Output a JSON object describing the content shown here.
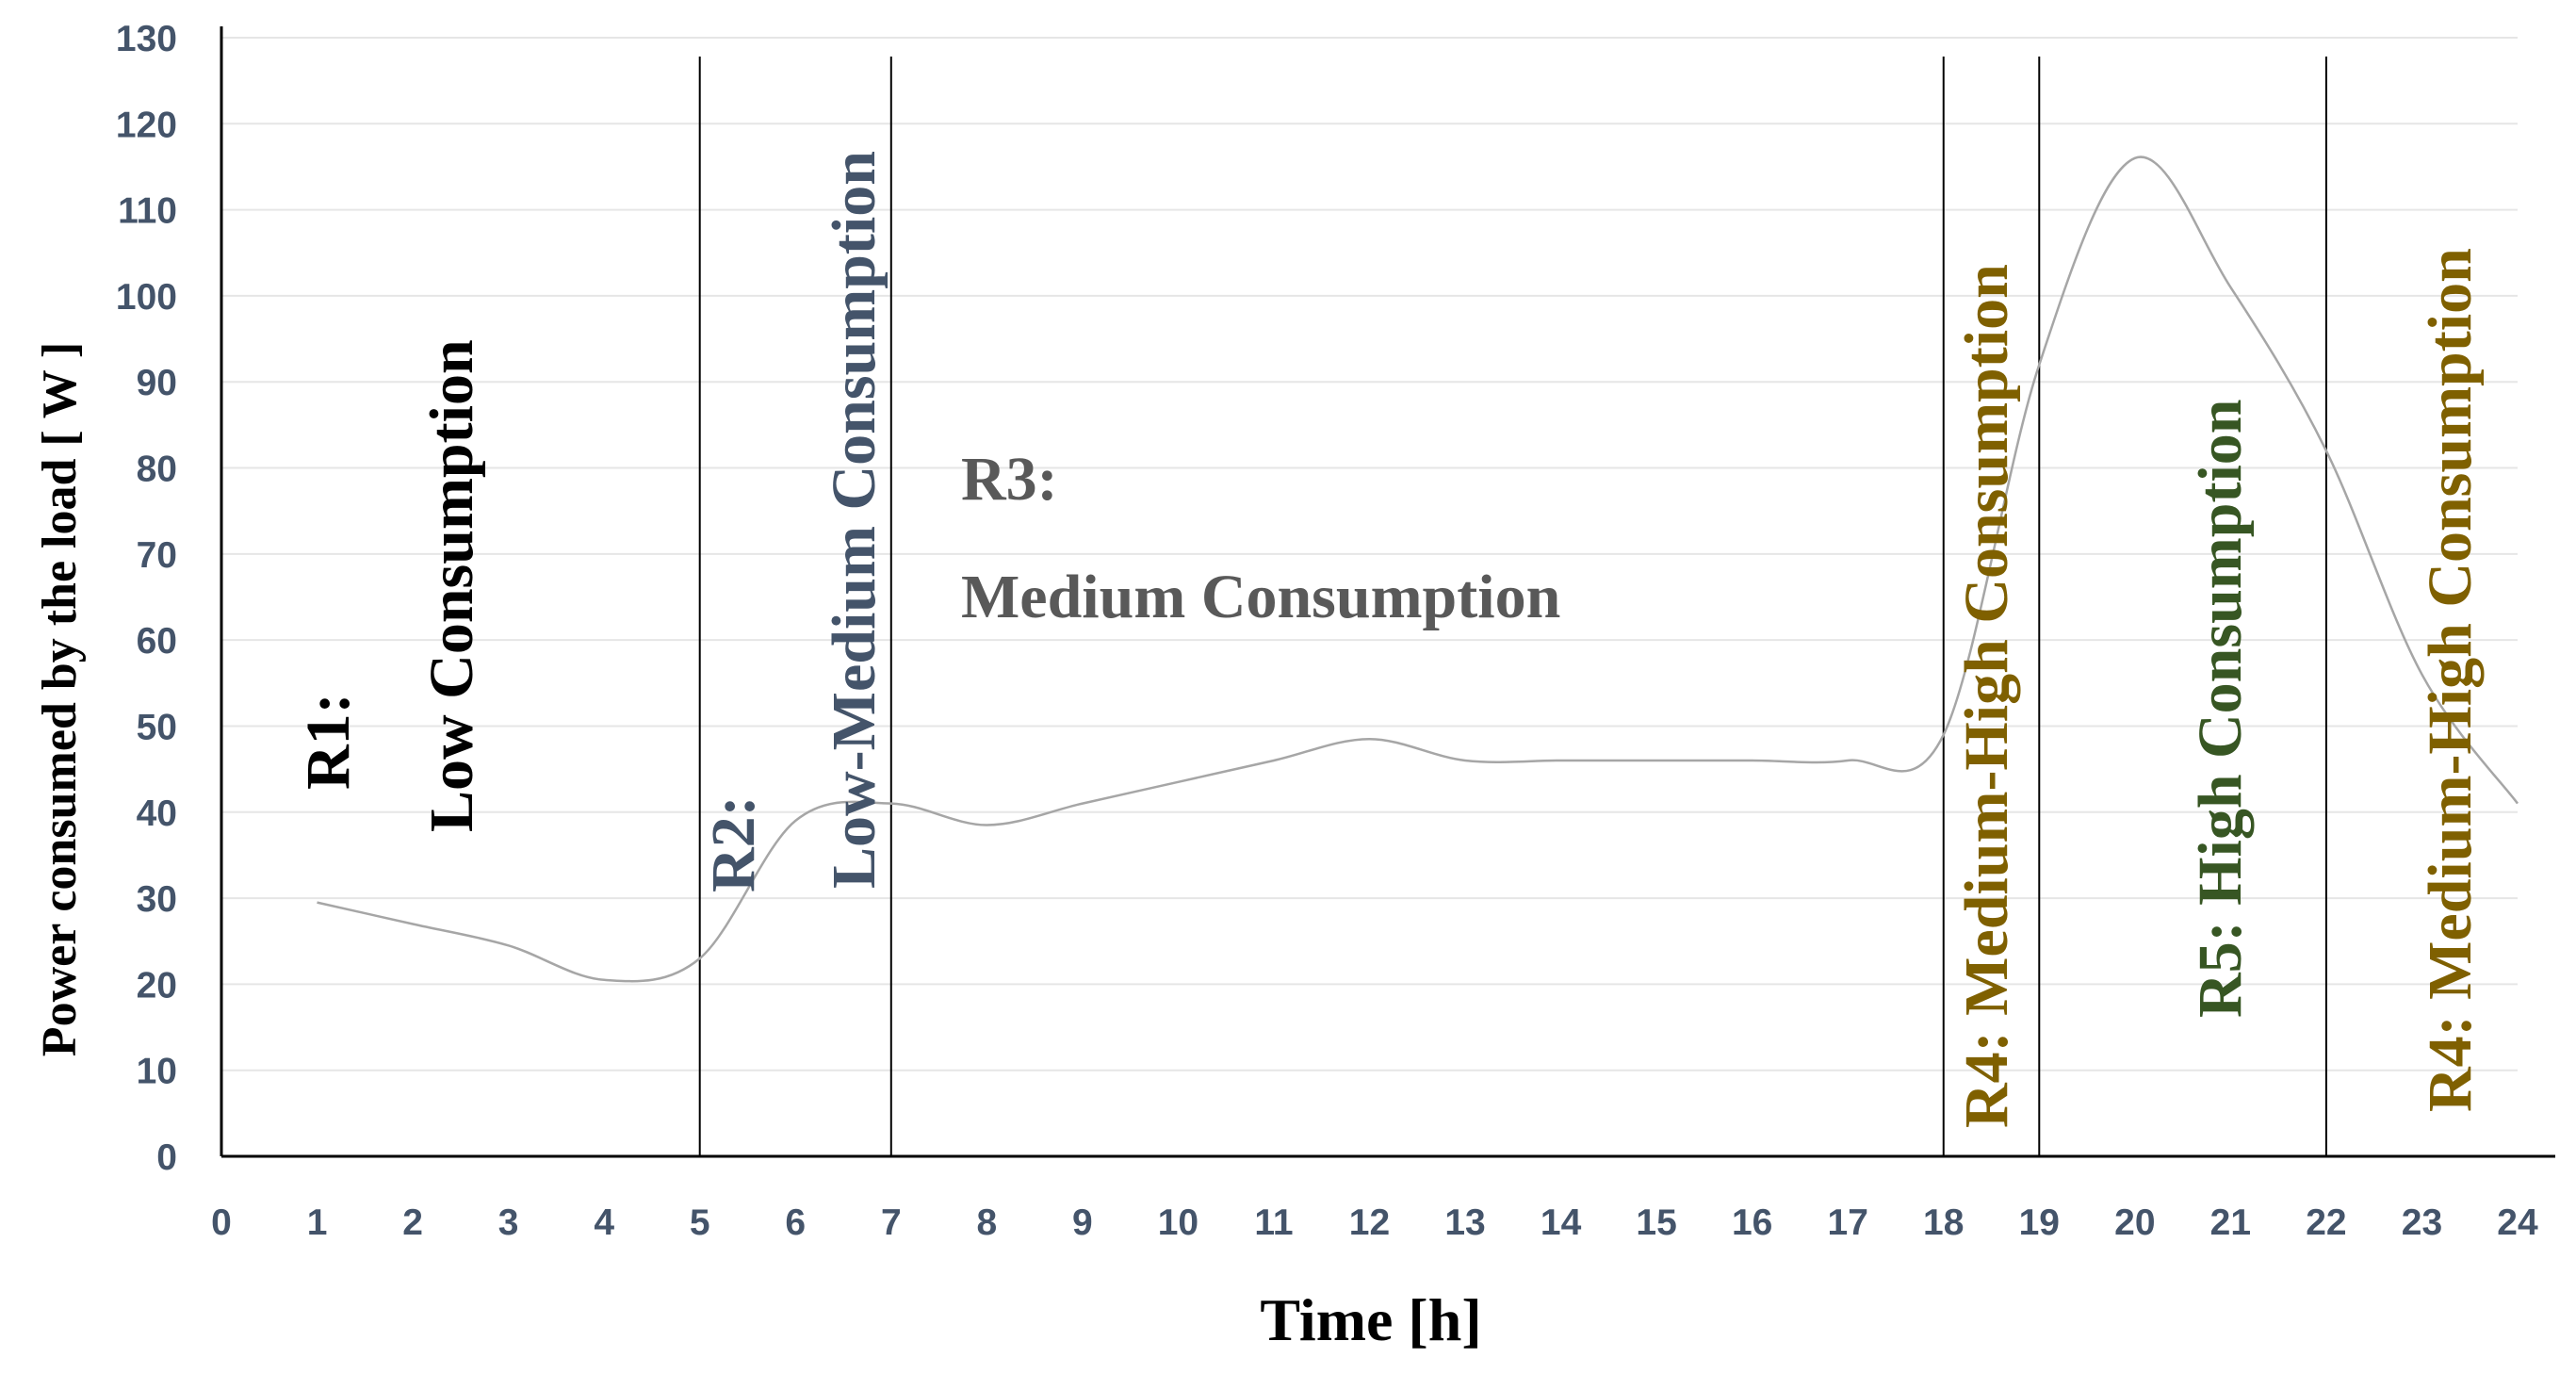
{
  "chart_data": {
    "type": "line",
    "title": "",
    "xlabel": "Time [h]",
    "ylabel": "Power consumed by the load [ W ]",
    "xlim": [
      0,
      24
    ],
    "ylim": [
      0,
      130
    ],
    "x_ticks": [
      "0",
      "1",
      "2",
      "3",
      "4",
      "5",
      "6",
      "7",
      "8",
      "9",
      "10",
      "11",
      "12",
      "13",
      "14",
      "15",
      "16",
      "17",
      "18",
      "19",
      "20",
      "21",
      "22",
      "23",
      "24"
    ],
    "y_ticks": [
      "0",
      "10",
      "20",
      "30",
      "40",
      "50",
      "60",
      "70",
      "80",
      "90",
      "100",
      "110",
      "120",
      "130"
    ],
    "grid": "horizontal",
    "series": [
      {
        "name": "Power consumed by the load",
        "color": "#a6a6a6",
        "x": [
          1,
          2,
          3,
          4,
          5,
          6,
          7,
          8,
          9,
          10,
          11,
          12,
          13,
          14,
          15,
          16,
          17,
          18,
          19,
          20,
          21,
          22,
          23,
          24
        ],
        "values": [
          29.5,
          27,
          24.5,
          20.5,
          23,
          39,
          41,
          38.5,
          41,
          43.5,
          46,
          48.5,
          46,
          46,
          46,
          46,
          46,
          49,
          92,
          116,
          101,
          82,
          56,
          41
        ]
      }
    ],
    "dividers": [
      5,
      7,
      18,
      19,
      22
    ],
    "regions": [
      {
        "id": "R1",
        "lines": [
          "R1:",
          "Low Consumption"
        ],
        "color": "#000000",
        "orientation": "vertical"
      },
      {
        "id": "R2",
        "lines": [
          "R2:",
          "Low-Medium Consumption"
        ],
        "color": "#44546a",
        "orientation": "vertical"
      },
      {
        "id": "R3",
        "lines": [
          "R3:",
          "Medium Consumption"
        ],
        "color": "#595959",
        "orientation": "horizontal"
      },
      {
        "id": "R4a",
        "lines": [
          "R4: Medium-High Consumption"
        ],
        "color": "#7f6000",
        "orientation": "vertical"
      },
      {
        "id": "R5",
        "lines": [
          "R5: High Consumption"
        ],
        "color": "#375623",
        "orientation": "vertical"
      },
      {
        "id": "R4b",
        "lines": [
          "R4: Medium-High Consumption"
        ],
        "color": "#7f6000",
        "orientation": "vertical"
      }
    ]
  }
}
